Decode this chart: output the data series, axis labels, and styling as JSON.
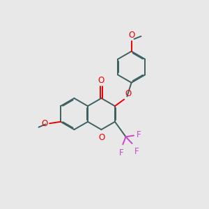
{
  "background_color": "#e8e8e8",
  "bond_color": "#3d6060",
  "o_color": "#ee0000",
  "f_color": "#cc44cc",
  "lw": 1.4,
  "r": 0.62,
  "dbg": 0.042,
  "fig_xlim": [
    0,
    10
  ],
  "fig_ylim": [
    0,
    10
  ]
}
